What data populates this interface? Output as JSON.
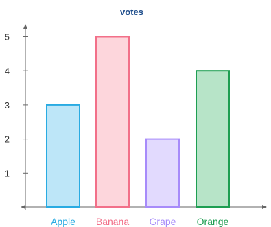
{
  "chart_data": {
    "type": "bar",
    "title": "votes",
    "xlabel": "",
    "ylabel": "",
    "categories": [
      "Apple",
      "Banana",
      "Grape",
      "Orange"
    ],
    "series": [
      {
        "values": [
          3,
          5,
          2,
          4
        ]
      }
    ],
    "ylim": [
      0,
      5.5
    ],
    "yticks": [
      1,
      2,
      3,
      4,
      5
    ],
    "grid": false,
    "colors": {
      "stroke": [
        "#29abe2",
        "#f27089",
        "#a78bfa",
        "#1e9e52"
      ],
      "fill": [
        "#bde6f8",
        "#fdd6dc",
        "#e2dafe",
        "#b7e4c8"
      ],
      "axis": "#666666",
      "title": "#1f4e8c",
      "tick_text": "#333333"
    }
  }
}
